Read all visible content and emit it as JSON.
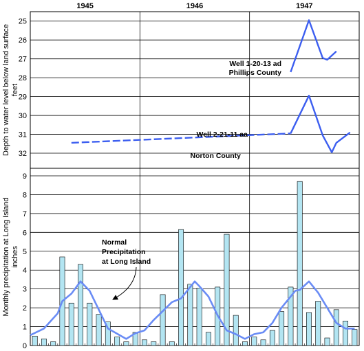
{
  "chart_data": {
    "type": "bar",
    "years": [
      "1945",
      "1946",
      "1947"
    ],
    "months_per_year": 12,
    "top_panel": {
      "ylabel_lines": [
        "Depth to water level below land surface",
        "feet"
      ],
      "y_ticks": [
        25,
        26,
        27,
        28,
        29,
        30,
        31,
        32
      ],
      "ylim": [
        24.5,
        32.8
      ],
      "inverted": true,
      "wells": [
        {
          "name": "Well 1-20-13 ad",
          "county": "Phillips County",
          "style": "solid",
          "points": [
            [
              28.5,
              27.7
            ],
            [
              30.5,
              24.95
            ],
            [
              32,
              26.95
            ],
            [
              32.5,
              27.05
            ],
            [
              33.5,
              26.6
            ]
          ]
        },
        {
          "name": "Well 2-21-11 aa",
          "county": "Norton County",
          "style": "dashed",
          "points": [
            [
              4.5,
              31.45
            ],
            [
              28.5,
              30.95
            ]
          ]
        },
        {
          "name": "",
          "county": "",
          "style": "solid",
          "points": [
            [
              28.5,
              30.95
            ],
            [
              30.5,
              28.95
            ],
            [
              32,
              31.05
            ],
            [
              33,
              31.95
            ],
            [
              33.5,
              31.45
            ],
            [
              35,
              30.9
            ]
          ]
        }
      ]
    },
    "bottom_panel": {
      "ylabel_lines": [
        "Monthly precipitation at Long Island",
        "inches"
      ],
      "y_ticks": [
        0,
        1,
        2,
        3,
        4,
        5,
        6,
        7,
        8,
        9
      ],
      "ylim": [
        0,
        9.4
      ],
      "bar_values": [
        0.5,
        0.35,
        0.2,
        4.7,
        2.25,
        4.3,
        2.25,
        1.65,
        1.25,
        0.45,
        0.2,
        0.7,
        0.3,
        0.2,
        2.7,
        0.2,
        6.15,
        3.25,
        3.05,
        0.7,
        3.1,
        5.9,
        1.6,
        0.2,
        0.45,
        0.3,
        0.8,
        1.8,
        3.1,
        8.7,
        1.75,
        2.35,
        0.4,
        1.9,
        1.3,
        0.85
      ],
      "normal_precip_label_lines": [
        "Normal",
        "Precipitation",
        "at Long Island"
      ],
      "normal_precip": [
        [
          0,
          0.55
        ],
        [
          1.5,
          0.9
        ],
        [
          3,
          1.7
        ],
        [
          3.5,
          2.35
        ],
        [
          4.5,
          2.75
        ],
        [
          5.5,
          3.4
        ],
        [
          6.5,
          2.9
        ],
        [
          7.5,
          1.9
        ],
        [
          8.5,
          0.9
        ],
        [
          10.5,
          0.35
        ],
        [
          11.5,
          0.65
        ],
        [
          12.5,
          0.8
        ],
        [
          13.5,
          1.35
        ],
        [
          15.5,
          2.3
        ],
        [
          16.5,
          2.5
        ],
        [
          17.5,
          3.1
        ],
        [
          18,
          3.4
        ],
        [
          18.5,
          3.15
        ],
        [
          19.5,
          2.6
        ],
        [
          20.5,
          1.6
        ],
        [
          21.5,
          0.8
        ],
        [
          22.5,
          0.6
        ],
        [
          23.5,
          0.35
        ],
        [
          24.5,
          0.6
        ],
        [
          25.5,
          0.7
        ],
        [
          26.5,
          1.2
        ],
        [
          27.5,
          2.0
        ],
        [
          29,
          2.9
        ],
        [
          29.5,
          2.95
        ],
        [
          30.5,
          3.4
        ],
        [
          31.5,
          2.8
        ],
        [
          32.5,
          2.0
        ],
        [
          33.5,
          1.2
        ],
        [
          34.5,
          0.9
        ],
        [
          35.5,
          0.9
        ]
      ]
    }
  }
}
